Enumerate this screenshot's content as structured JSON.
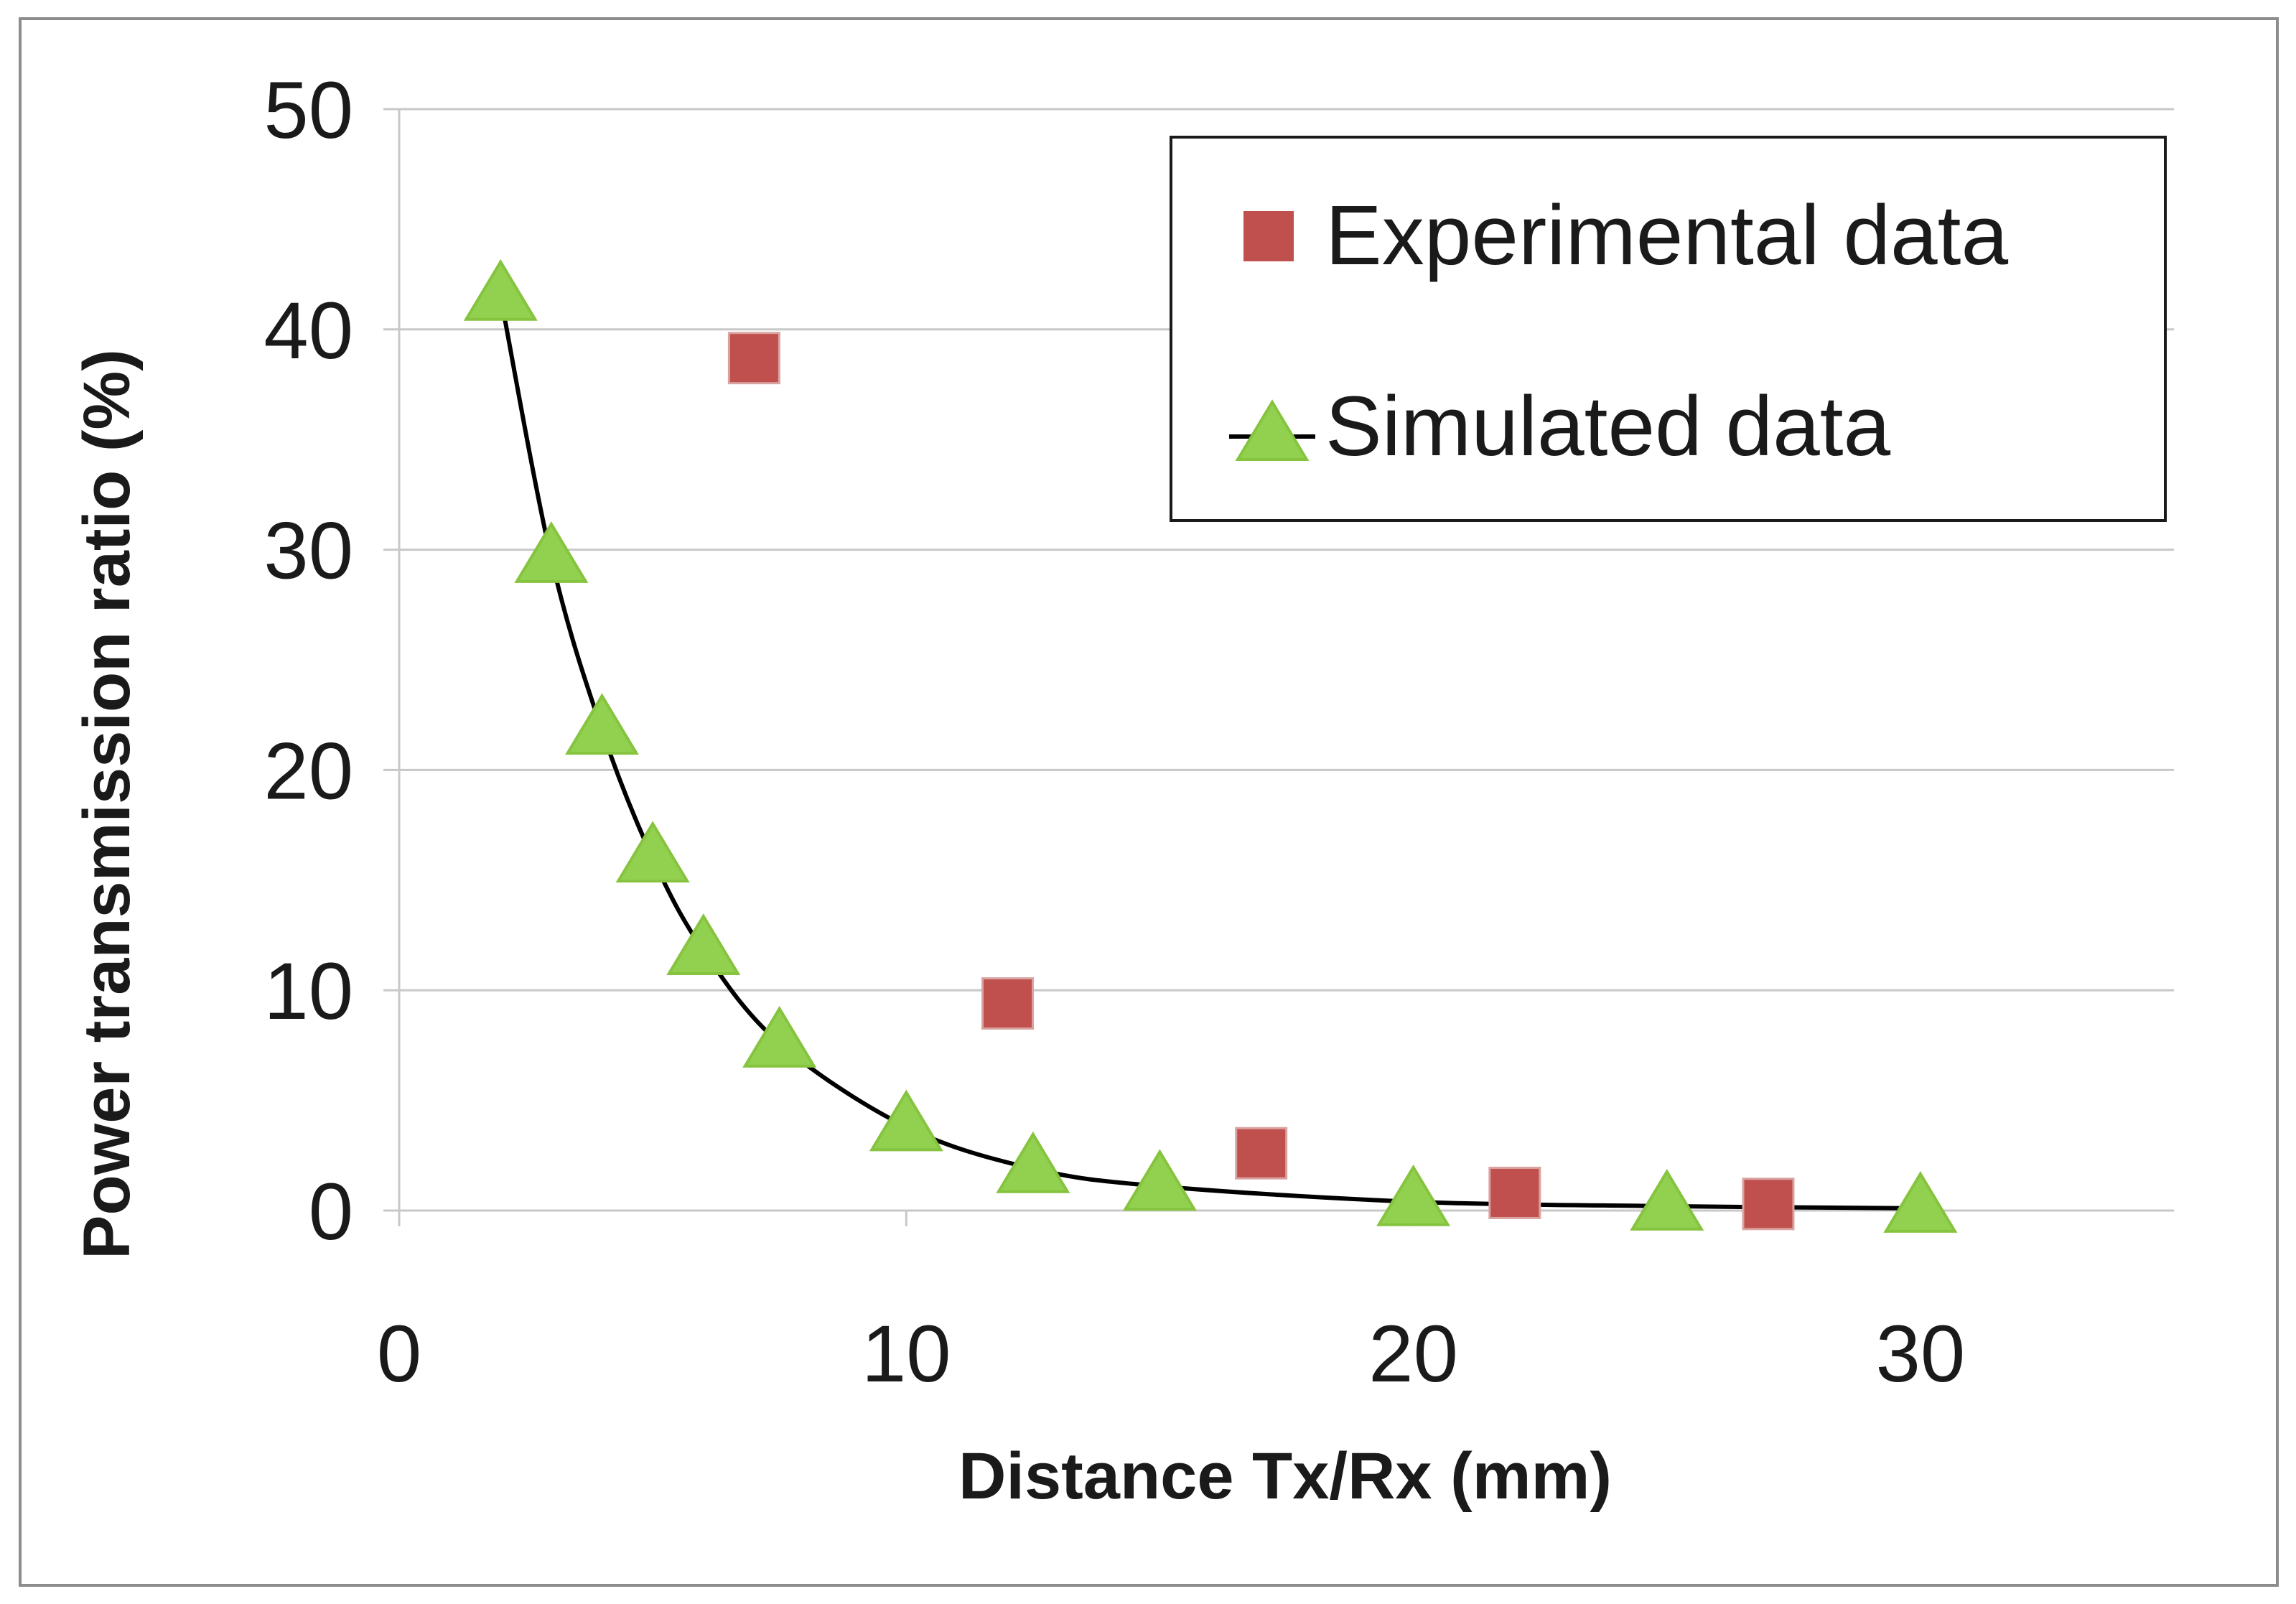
{
  "chart_data": {
    "type": "scatter",
    "xlabel": "Distance Tx/Rx (mm)",
    "ylabel": "Power transmission ratio (%)",
    "xlim": [
      0,
      35
    ],
    "ylim": [
      0,
      50
    ],
    "x_ticks": [
      0,
      10,
      20,
      30
    ],
    "y_ticks": [
      0,
      10,
      20,
      30,
      40,
      50
    ],
    "grid": "horizontal",
    "legend_position": "top-right",
    "series": [
      {
        "name": "Experimental data",
        "marker": "square",
        "line": false,
        "color": "#c0504d",
        "x": [
          7,
          12,
          17,
          22,
          27
        ],
        "y": [
          38.7,
          9.4,
          2.6,
          0.8,
          0.3
        ]
      },
      {
        "name": "Simulated data",
        "marker": "triangle",
        "line": true,
        "line_color": "#000000",
        "color": "#92d050",
        "x": [
          2,
          3,
          4,
          5,
          6,
          7.5,
          10,
          12.5,
          15,
          20,
          25,
          30
        ],
        "y": [
          41.5,
          29.6,
          21.8,
          16.0,
          11.8,
          7.6,
          3.8,
          1.9,
          1.1,
          0.4,
          0.2,
          0.1
        ]
      }
    ]
  }
}
